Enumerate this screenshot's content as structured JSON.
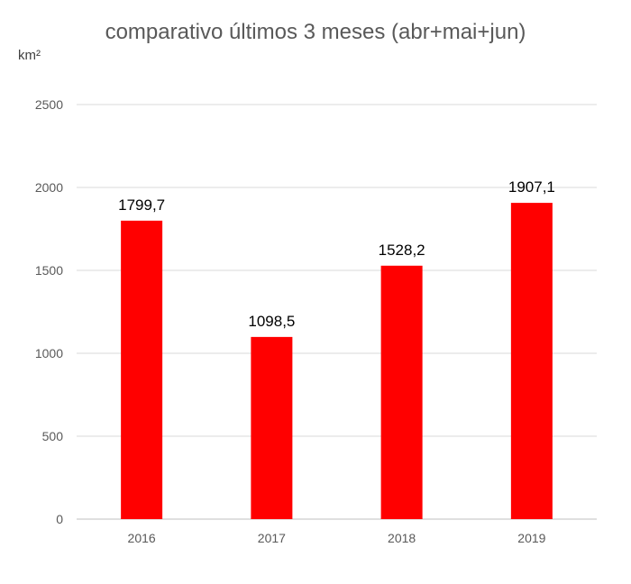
{
  "chart_data": {
    "type": "bar",
    "title": "comparativo últimos 3 meses (abr+mai+jun)",
    "ylabel": "km²",
    "xlabel": "",
    "categories": [
      "2016",
      "2017",
      "2018",
      "2019"
    ],
    "series": [
      {
        "values": [
          1799.7,
          1098.5,
          1528.2,
          1907.1
        ],
        "labels": [
          "1799,7",
          "1098,5",
          "1528,2",
          "1907,1"
        ],
        "color": "#ff0000"
      }
    ],
    "ylim": [
      0,
      2500
    ],
    "yticks": [
      "0",
      "500",
      "1000",
      "1500",
      "2000",
      "2500"
    ],
    "grid": true,
    "legend": "none"
  }
}
